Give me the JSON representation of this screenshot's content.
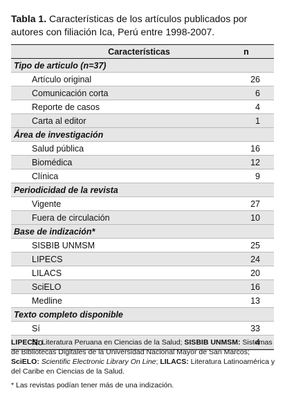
{
  "caption": {
    "label": "Tabla 1.",
    "text": " Características de los artículos publicados por autores con filiación Ica, Perú entre 1998-2007."
  },
  "table": {
    "header": [
      "Características",
      "n"
    ],
    "sections": [
      {
        "title": "Tipo de articulo (n=37)",
        "rows": [
          [
            "Artículo original",
            26
          ],
          [
            "Comunicación corta",
            6
          ],
          [
            "Reporte de casos",
            4
          ],
          [
            "Carta al editor",
            1
          ]
        ]
      },
      {
        "title": "Área de investigación",
        "rows": [
          [
            "Salud pública",
            16
          ],
          [
            "Biomédica",
            12
          ],
          [
            "Clínica",
            9
          ]
        ]
      },
      {
        "title": "Periodicidad de la revista",
        "rows": [
          [
            "Vigente",
            27
          ],
          [
            "Fuera de circulación",
            10
          ]
        ]
      },
      {
        "title": "Base de indización*",
        "rows": [
          [
            "SISBIB UNMSM",
            25
          ],
          [
            "LIPECS",
            24
          ],
          [
            "LILACS",
            20
          ],
          [
            "SciELO",
            16
          ],
          [
            "Medline",
            13
          ]
        ]
      },
      {
        "title": "Texto completo disponible",
        "rows": [
          [
            "Sí",
            33
          ],
          [
            "No",
            4
          ]
        ]
      }
    ]
  },
  "footnotes": [
    [
      {
        "style": "bold",
        "text": "LIPECS:"
      },
      {
        "style": "plain",
        "text": " Literatura Peruana en Ciencias de la Salud; "
      },
      {
        "style": "bold",
        "text": "SISBIB UNMSM:"
      },
      {
        "style": "plain",
        "text": " Sistemas de Bibliotecas Digitales de la Universidad Nacional Mayor de San Marcos; "
      },
      {
        "style": "bold",
        "text": "SciELO:"
      },
      {
        "style": "italic",
        "text": " Scientific Electronic Library On Line"
      },
      {
        "style": "plain",
        "text": "; "
      },
      {
        "style": "bold",
        "text": "LILACS:"
      },
      {
        "style": "plain",
        "text": " Literatura Latinoamérica y del Caribe en Ciencias de la Salud."
      }
    ],
    [
      {
        "style": "plain",
        "text": "* Las revistas podían tener más de una indización."
      }
    ]
  ]
}
